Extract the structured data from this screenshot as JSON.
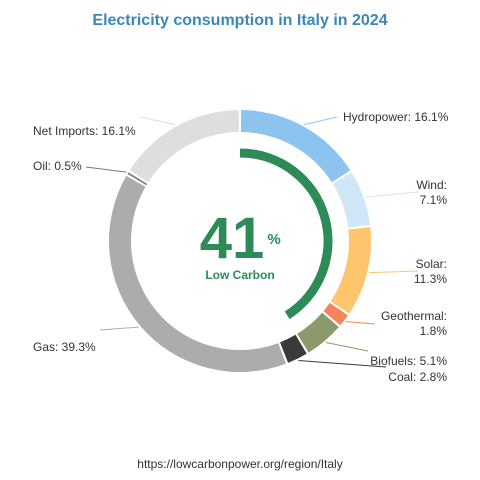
{
  "chart_data": {
    "type": "pie",
    "title": "Electricity consumption in Italy in 2024",
    "title_color": "#3a87b8",
    "slices": [
      {
        "name": "Hydropower",
        "label": "Hydropower: 16.1%",
        "value": 16.1,
        "color": "#8cc4ef"
      },
      {
        "name": "Wind",
        "label": "Wind:\n7.1%",
        "value": 7.1,
        "color": "#cfe6f7"
      },
      {
        "name": "Solar",
        "label": "Solar:\n11.3%",
        "value": 11.3,
        "color": "#fec56c"
      },
      {
        "name": "Geothermal",
        "label": "Geothermal:\n1.8%",
        "value": 1.8,
        "color": "#f7835a"
      },
      {
        "name": "Biofuels",
        "label": "Biofuels: 5.1%",
        "value": 5.1,
        "color": "#8a9a6a"
      },
      {
        "name": "Coal",
        "label": "Coal: 2.8%",
        "value": 2.8,
        "color": "#3a3a3a"
      },
      {
        "name": "Gas",
        "label": "Gas: 39.3%",
        "value": 39.3,
        "color": "#acacac"
      },
      {
        "name": "Oil",
        "label": "Oil: 0.5%",
        "value": 0.5,
        "color": "#7a7a7a"
      },
      {
        "name": "Net Imports",
        "label": "Net Imports: 16.1%",
        "value": 16.1,
        "color": "#dedede"
      }
    ],
    "center": {
      "value": "41",
      "unit": "%",
      "label": "Low Carbon",
      "fraction": 0.41,
      "color": "#2e8b57"
    },
    "source": "https://lowcarbonpower.org/region/Italy"
  }
}
